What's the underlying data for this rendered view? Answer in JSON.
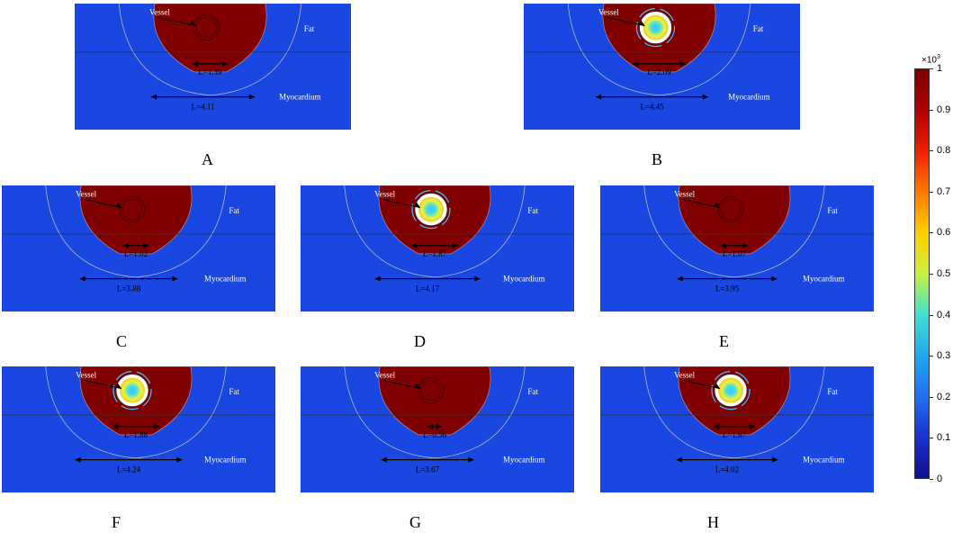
{
  "panels": [
    {
      "id": "A",
      "caption": "A",
      "vessel_label": "Vessel",
      "fat_label": "Fat",
      "myo_label": "Myocardium",
      "inner_length": "L=1.39",
      "outer_length": "L=4.11",
      "cooled": false
    },
    {
      "id": "B",
      "caption": "B",
      "vessel_label": "Vessel",
      "fat_label": "Fat",
      "myo_label": "Myocardium",
      "inner_length": "L=2.09",
      "outer_length": "L=4.45",
      "cooled": true
    },
    {
      "id": "C",
      "caption": "C",
      "vessel_label": "Vessel",
      "fat_label": "Fat",
      "myo_label": "Myocardium",
      "inner_length": "L=1.02",
      "outer_length": "L=3.88",
      "cooled": false
    },
    {
      "id": "D",
      "caption": "D",
      "vessel_label": "Vessel",
      "fat_label": "Fat",
      "myo_label": "Myocardium",
      "inner_length": "L=1.87",
      "outer_length": "L=4.17",
      "cooled": true
    },
    {
      "id": "E",
      "caption": "E",
      "vessel_label": "Vessel",
      "fat_label": "Fat",
      "myo_label": "Myocardium",
      "inner_length": "L=1.07",
      "outer_length": "L=3.95",
      "cooled": false
    },
    {
      "id": "F",
      "caption": "F",
      "vessel_label": "Vessel",
      "fat_label": "Fat",
      "myo_label": "Myocardium",
      "inner_length": "L=1.88",
      "outer_length": "L=4.24",
      "cooled": true
    },
    {
      "id": "G",
      "caption": "G",
      "vessel_label": "Vessel",
      "fat_label": "Fat",
      "myo_label": "Myocardium",
      "inner_length": "L=0.56",
      "outer_length": "L=3.67",
      "cooled": false
    },
    {
      "id": "H",
      "caption": "H",
      "vessel_label": "Vessel",
      "fat_label": "Fat",
      "myo_label": "Myocardium",
      "inner_length": "L=1.67",
      "outer_length": "L=4.02",
      "cooled": true
    }
  ],
  "colorbar": {
    "exponent_base": "×10",
    "exponent_power": "3",
    "ticks": [
      "1",
      "0.9",
      "0.8",
      "0.7",
      "0.6",
      "0.5",
      "0.4",
      "0.3",
      "0.2",
      "0.1",
      "0"
    ],
    "colors": [
      "#7a0000",
      "#b00000",
      "#ee2000",
      "#ff7a00",
      "#ffd000",
      "#c8f040",
      "#40e0d0",
      "#20a8f0",
      "#2070f0",
      "#1a30d0",
      "#10108a"
    ]
  }
}
